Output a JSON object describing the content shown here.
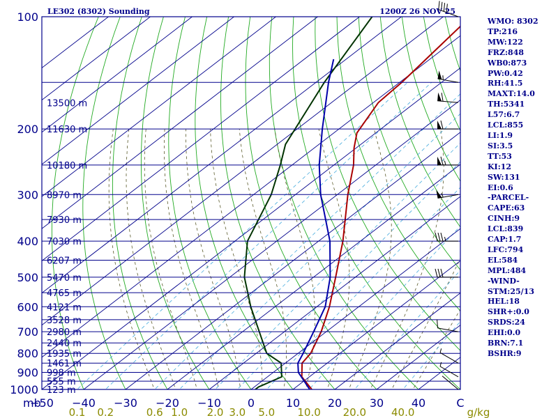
{
  "header": {
    "station": "LE302 (8302) Sounding",
    "time": "1200Z 26 NOV 25"
  },
  "indices": [
    "WMO: 8302",
    "TP:216",
    "MW:122",
    "FRZ:848",
    "WB0:873",
    "PW:0.42",
    "RH:41.5",
    "MAXT:14.0",
    "TH:5341",
    "L57:6.7",
    "LCL:855",
    "LI:1.9",
    "SI:3.5",
    "TT:53",
    "KI:12",
    "SW:131",
    "EI:0.6",
    "-PARCEL-",
    "CAPE:63",
    "CINH:9",
    "LCL:839",
    "CAP:1.7",
    "LFC:794",
    "EL:584",
    "MPL:484",
    "-WIND-",
    "STM:25/13",
    "HEL:18",
    "SHR+:0.0",
    "SRDS:24",
    "EHI:0.0",
    "BRN:7.1",
    "BSHR:9"
  ],
  "colors": {
    "frame": "#00008b",
    "isobar": "#00008b",
    "isotherm": "#00008b",
    "dry_adiabat": "#22aa22",
    "moist_adiabat": "#5a5a2a",
    "mixing_ratio": "#44aadd",
    "temperature": "#aa0000",
    "dewpoint": "#003300",
    "parcel": "#0000aa",
    "mixing_label": "#8b8b00"
  },
  "chart_data": {
    "type": "line",
    "diagram": "skew-T log-p",
    "pressure_ticks": [
      100,
      200,
      300,
      400,
      500,
      600,
      700,
      800,
      900,
      1000
    ],
    "pressure_axis_label": "mb",
    "temperature_ticks": [
      -50,
      -40,
      -30,
      -20,
      -10,
      0,
      10,
      20,
      30,
      40
    ],
    "temperature_axis_unit": "C",
    "xlim": [
      -50,
      50
    ],
    "ylim": [
      1000,
      100
    ],
    "mixing_ratio_labels": [
      "0.1",
      "0.2",
      "0.6",
      "1.0",
      "2.0",
      "3.0",
      "5.0",
      "10.0",
      "20.0",
      "40.0"
    ],
    "mixing_ratio_unit": "g/kg",
    "height_levels": [
      {
        "p": 170,
        "label": "13500 m"
      },
      {
        "p": 200,
        "label": "11630 m"
      },
      {
        "p": 250,
        "label": "10180 m"
      },
      {
        "p": 300,
        "label": "8970 m"
      },
      {
        "p": 350,
        "label": "7930 m"
      },
      {
        "p": 400,
        "label": "7030 m"
      },
      {
        "p": 450,
        "label": "6207 m"
      },
      {
        "p": 500,
        "label": "5470 m"
      },
      {
        "p": 550,
        "label": "4765 m"
      },
      {
        "p": 600,
        "label": "4121 m"
      },
      {
        "p": 650,
        "label": "3528 m"
      },
      {
        "p": 700,
        "label": "2980 m"
      },
      {
        "p": 750,
        "label": "2440 m"
      },
      {
        "p": 800,
        "label": "1935 m"
      },
      {
        "p": 850,
        "label": "1461 m"
      },
      {
        "p": 900,
        "label": "998 m"
      },
      {
        "p": 950,
        "label": "555 m"
      },
      {
        "p": 1000,
        "label": "123 m"
      }
    ],
    "series": [
      {
        "name": "Temperature",
        "points": [
          {
            "p": 1000,
            "t": 14.5
          },
          {
            "p": 925,
            "t": 8.2
          },
          {
            "p": 850,
            "t": 4.0
          },
          {
            "p": 800,
            "t": 3.0
          },
          {
            "p": 700,
            "t": -1.2
          },
          {
            "p": 600,
            "t": -7.0
          },
          {
            "p": 500,
            "t": -14.7
          },
          {
            "p": 400,
            "t": -24.2
          },
          {
            "p": 300,
            "t": -37.5
          },
          {
            "p": 250,
            "t": -45.3
          },
          {
            "p": 225,
            "t": -50.5
          },
          {
            "p": 205,
            "t": -54.5
          },
          {
            "p": 170,
            "t": -58.8
          },
          {
            "p": 150,
            "t": -59.5
          },
          {
            "p": 100,
            "t": -63.5
          }
        ]
      },
      {
        "name": "Dewpoint",
        "points": [
          {
            "p": 1000,
            "t": 1.0
          },
          {
            "p": 985,
            "t": 1.0
          },
          {
            "p": 925,
            "t": 3.4
          },
          {
            "p": 850,
            "t": -1.0
          },
          {
            "p": 800,
            "t": -7.5
          },
          {
            "p": 700,
            "t": -16.0
          },
          {
            "p": 600,
            "t": -25.8
          },
          {
            "p": 500,
            "t": -36.5
          },
          {
            "p": 400,
            "t": -47.0
          },
          {
            "p": 300,
            "t": -55.8
          },
          {
            "p": 250,
            "t": -62.8
          },
          {
            "p": 220,
            "t": -68.0
          },
          {
            "p": 200,
            "t": -70.5
          },
          {
            "p": 150,
            "t": -78.0
          },
          {
            "p": 100,
            "t": -87.0
          }
        ]
      },
      {
        "name": "Parcel",
        "points": [
          {
            "p": 1000,
            "t": 14.0
          },
          {
            "p": 900,
            "t": 6.0
          },
          {
            "p": 850,
            "t": 3.0
          },
          {
            "p": 800,
            "t": 1.2
          },
          {
            "p": 700,
            "t": -3.0
          },
          {
            "p": 600,
            "t": -8.0
          },
          {
            "p": 500,
            "t": -16.0
          },
          {
            "p": 400,
            "t": -27.3
          },
          {
            "p": 300,
            "t": -44.0
          },
          {
            "p": 250,
            "t": -53.5
          },
          {
            "p": 200,
            "t": -64.0
          },
          {
            "p": 150,
            "t": -77.0
          },
          {
            "p": 130,
            "t": -83.0
          }
        ]
      }
    ],
    "wind_barbs": [
      {
        "p": 1000,
        "dir": 310,
        "speed_kt": 0
      },
      {
        "p": 925,
        "dir": 300,
        "speed_kt": 5
      },
      {
        "p": 850,
        "dir": 300,
        "speed_kt": 5
      },
      {
        "p": 700,
        "dir": 280,
        "speed_kt": 10
      },
      {
        "p": 500,
        "dir": 270,
        "speed_kt": 30
      },
      {
        "p": 400,
        "dir": 270,
        "speed_kt": 35
      },
      {
        "p": 300,
        "dir": 260,
        "speed_kt": 55
      },
      {
        "p": 250,
        "dir": 270,
        "speed_kt": 65
      },
      {
        "p": 200,
        "dir": 270,
        "speed_kt": 60
      },
      {
        "p": 170,
        "dir": 275,
        "speed_kt": 60
      },
      {
        "p": 150,
        "dir": 280,
        "speed_kt": 55
      },
      {
        "p": 100,
        "dir": 290,
        "speed_kt": 40
      }
    ]
  }
}
